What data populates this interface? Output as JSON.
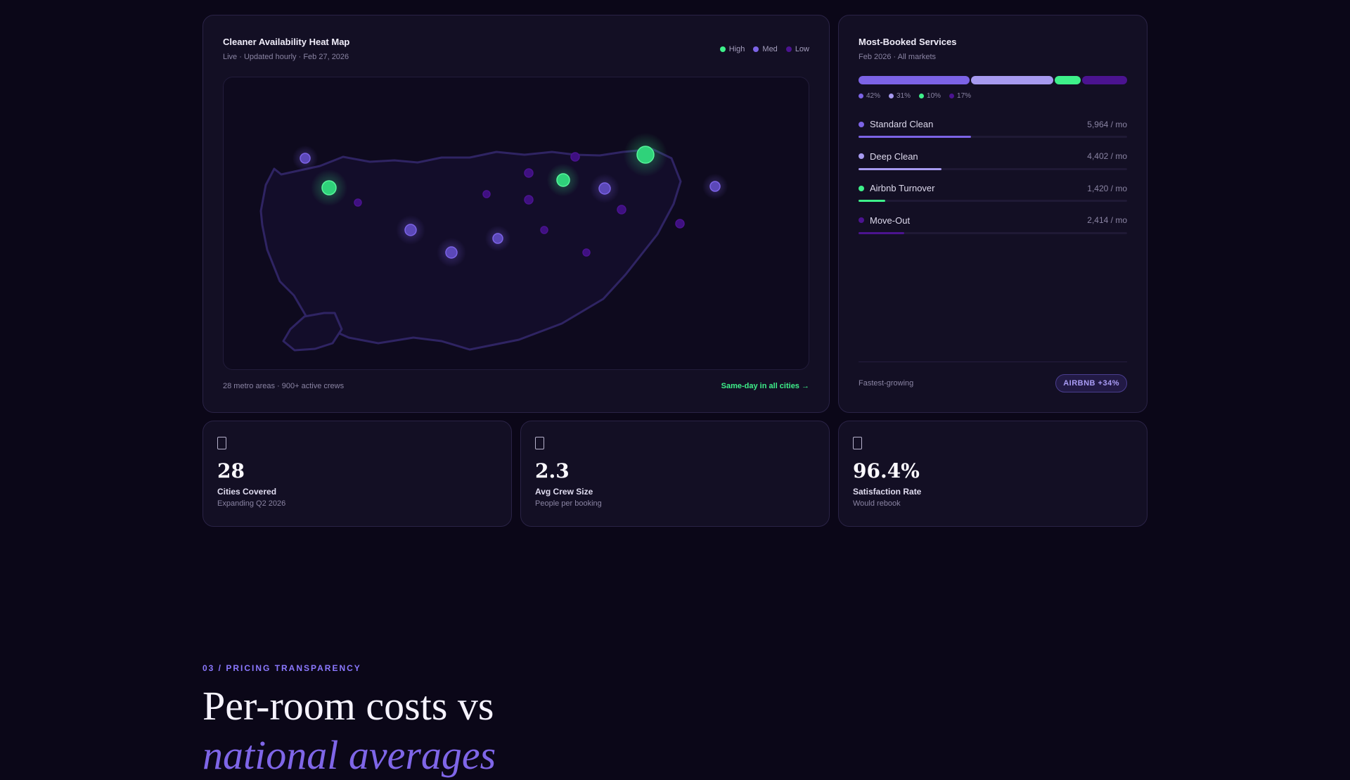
{
  "heatmap": {
    "title": "Cleaner Availability Heat Map",
    "subtitle": "Live · Updated hourly · Feb 27, 2026",
    "legend": [
      {
        "label": "High",
        "color": "#3ef08a"
      },
      {
        "label": "Med",
        "color": "#7c63e6"
      },
      {
        "label": "Low",
        "color": "#4b1390"
      }
    ],
    "footer_left": "28 metro areas · 900+ active crews",
    "footer_right": "Same-day in all cities →"
  },
  "services": {
    "title": "Most-Booked Services",
    "subtitle": "Feb 2026 · All markets",
    "breakdown": [
      {
        "pct": "42%",
        "share": 42,
        "color": "#7c63e6"
      },
      {
        "pct": "31%",
        "share": 31,
        "color": "#a79af0"
      },
      {
        "pct": "10%",
        "share": 10,
        "color": "#3ef08a"
      },
      {
        "pct": "17%",
        "share": 17,
        "color": "#4b1390"
      }
    ],
    "items": [
      {
        "name": "Standard Clean",
        "value": "5,964 / mo",
        "fill": 42,
        "color": "#7c63e6"
      },
      {
        "name": "Deep Clean",
        "value": "4,402 / mo",
        "fill": 31,
        "color": "#a79af0"
      },
      {
        "name": "Airbnb Turnover",
        "value": "1,420 / mo",
        "fill": 10,
        "color": "#3ef08a"
      },
      {
        "name": "Move-Out",
        "value": "2,414 / mo",
        "fill": 17,
        "color": "#4b1390"
      }
    ],
    "footer_label": "Fastest-growing",
    "badge": "AIRBNB +34%"
  },
  "stats": [
    {
      "icon": "building-icon",
      "value": "28",
      "label": "Cities Covered",
      "sub": "Expanding Q2 2026"
    },
    {
      "icon": "people-icon",
      "value": "2.3",
      "label": "Avg Crew Size",
      "sub": "People per booking"
    },
    {
      "icon": "star-icon",
      "value": "96.4%",
      "label": "Satisfaction Rate",
      "sub": "Would rebook"
    }
  ],
  "pricing": {
    "eyebrow": "03 / PRICING TRANSPARENCY",
    "headline_line1": "Per-room costs vs",
    "headline_line2": "national averages"
  }
}
